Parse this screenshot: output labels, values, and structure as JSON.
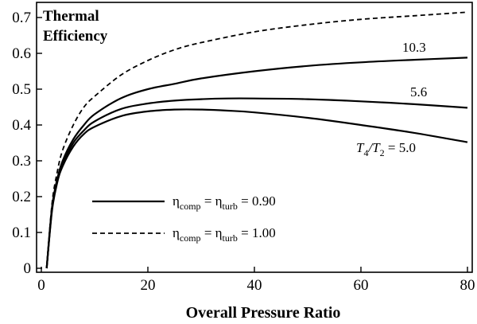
{
  "chart_data": {
    "type": "line",
    "title_lines": [
      "Thermal",
      "Efficiency"
    ],
    "xlabel": "Overall Pressure Ratio",
    "ylabel": "",
    "xlim": [
      0,
      80
    ],
    "ylim": [
      0,
      0.72
    ],
    "x_ticks": [
      "0",
      "20",
      "40",
      "60",
      "80"
    ],
    "y_ticks": [
      "0",
      "0.1",
      "0.2",
      "0.3",
      "0.4",
      "0.5",
      "0.6",
      "0.7"
    ],
    "grid": false,
    "legend_position": "lower-center",
    "legend": [
      {
        "symbol": "η",
        "sub1": "comp",
        "eq": " = ",
        "sub2": "turb",
        "value": " = 0.90",
        "style": "solid"
      },
      {
        "symbol": "η",
        "sub1": "comp",
        "eq": " = ",
        "sub2": "turb",
        "value": " = 1.00",
        "style": "dashed"
      }
    ],
    "series": [
      {
        "style": "dashed",
        "x": [
          1,
          2,
          3,
          4,
          6,
          8,
          10,
          15,
          20,
          25,
          30,
          40,
          50,
          60,
          70,
          80
        ],
        "y": [
          0.0,
          0.18,
          0.27,
          0.33,
          0.4,
          0.45,
          0.48,
          0.54,
          0.58,
          0.61,
          0.63,
          0.66,
          0.68,
          0.695,
          0.705,
          0.715
        ]
      },
      {
        "style": "solid",
        "label": "10.3",
        "x": [
          1,
          2,
          3,
          4,
          6,
          8,
          10,
          15,
          20,
          25,
          30,
          40,
          50,
          60,
          70,
          80
        ],
        "y": [
          0.0,
          0.17,
          0.25,
          0.3,
          0.36,
          0.4,
          0.43,
          0.475,
          0.5,
          0.515,
          0.53,
          0.55,
          0.565,
          0.575,
          0.582,
          0.588
        ]
      },
      {
        "style": "solid",
        "label": "5.6",
        "x": [
          1,
          2,
          3,
          4,
          6,
          8,
          10,
          15,
          20,
          25,
          30,
          35,
          40,
          50,
          60,
          70,
          80
        ],
        "y": [
          0.0,
          0.165,
          0.245,
          0.29,
          0.35,
          0.385,
          0.41,
          0.445,
          0.46,
          0.468,
          0.472,
          0.474,
          0.474,
          0.472,
          0.466,
          0.458,
          0.448
        ]
      },
      {
        "style": "solid",
        "label_parts": [
          "T",
          "4",
          "/T",
          "2",
          " = 5.0"
        ],
        "x": [
          1,
          2,
          3,
          4,
          6,
          8,
          10,
          15,
          20,
          25,
          30,
          35,
          40,
          50,
          60,
          70,
          80
        ],
        "y": [
          0.0,
          0.16,
          0.24,
          0.285,
          0.34,
          0.375,
          0.395,
          0.425,
          0.438,
          0.443,
          0.443,
          0.44,
          0.435,
          0.42,
          0.4,
          0.378,
          0.352
        ]
      }
    ]
  }
}
